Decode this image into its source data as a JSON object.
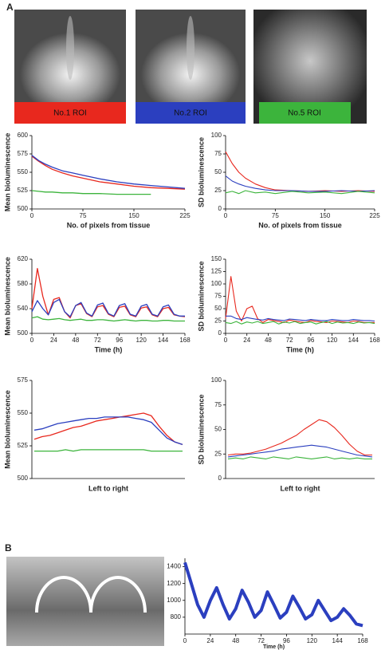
{
  "figure": {
    "panel_a_label": "A",
    "roi_labels": [
      "No.1 ROI",
      "No.2 ROI",
      "No.5 ROI"
    ],
    "panel_b_label": "B"
  },
  "chart_data": [
    {
      "type": "line",
      "xlabel": "No. of pixels from tissue",
      "ylabel": "Mean bioluminescence",
      "x": [
        0,
        10,
        20,
        30,
        45,
        60,
        75,
        100,
        125,
        150,
        175,
        200,
        225
      ],
      "xlim": [
        0,
        225
      ],
      "xticks": [
        0,
        75,
        150,
        225
      ],
      "ylim": [
        500,
        600
      ],
      "yticks": [
        500,
        525,
        550,
        575,
        600
      ],
      "series": [
        {
          "color": "#e8281e",
          "values": [
            572,
            565,
            559,
            554,
            549,
            545,
            542,
            537,
            534,
            531,
            529,
            528,
            527
          ]
        },
        {
          "color": "#2b3fbf",
          "values": [
            573,
            566,
            561,
            557,
            552,
            549,
            546,
            541,
            537,
            534,
            532,
            530,
            528
          ]
        },
        {
          "color": "#3cb43c",
          "values": [
            525,
            524,
            523,
            523,
            522,
            522,
            521,
            521,
            520,
            520,
            520,
            null,
            null
          ]
        }
      ]
    },
    {
      "type": "line",
      "xlabel": "No. of pixels from tissue",
      "ylabel": "SD bioluminescence",
      "x": [
        0,
        10,
        20,
        30,
        45,
        60,
        75,
        100,
        125,
        150,
        175,
        200,
        225
      ],
      "xlim": [
        0,
        225
      ],
      "xticks": [
        0,
        75,
        150,
        225
      ],
      "ylim": [
        0,
        100
      ],
      "yticks": [
        0,
        25,
        50,
        75,
        100
      ],
      "series": [
        {
          "color": "#e8281e",
          "values": [
            78,
            62,
            50,
            42,
            34,
            29,
            26,
            25,
            24,
            25,
            24,
            25,
            24
          ]
        },
        {
          "color": "#2b3fbf",
          "values": [
            45,
            38,
            34,
            31,
            28,
            26,
            25,
            25,
            24,
            24,
            25,
            24,
            25
          ]
        },
        {
          "color": "#3cb43c",
          "values": [
            22,
            24,
            21,
            25,
            22,
            23,
            21,
            24,
            22,
            23,
            21,
            24,
            22
          ]
        }
      ]
    },
    {
      "type": "line",
      "xlabel": "Time (h)",
      "ylabel": "Mean bioluminescence",
      "x": [
        0,
        6,
        12,
        18,
        24,
        30,
        36,
        42,
        48,
        54,
        60,
        66,
        72,
        78,
        84,
        90,
        96,
        102,
        108,
        114,
        120,
        126,
        132,
        138,
        144,
        150,
        156,
        162,
        168
      ],
      "xlim": [
        0,
        168
      ],
      "xticks": [
        0,
        24,
        48,
        72,
        96,
        120,
        144,
        168
      ],
      "ylim": [
        500,
        620
      ],
      "yticks": [
        500,
        540,
        580,
        620
      ],
      "series": [
        {
          "color": "#e8281e",
          "values": [
            540,
            605,
            560,
            530,
            555,
            558,
            535,
            525,
            545,
            548,
            532,
            527,
            543,
            545,
            531,
            527,
            542,
            544,
            530,
            527,
            541,
            543,
            530,
            527,
            540,
            542,
            530,
            528,
            527
          ]
        },
        {
          "color": "#2b3fbf",
          "values": [
            535,
            553,
            540,
            530,
            550,
            555,
            535,
            527,
            545,
            550,
            533,
            528,
            546,
            549,
            532,
            528,
            545,
            548,
            531,
            528,
            544,
            547,
            531,
            528,
            543,
            546,
            531,
            528,
            528
          ]
        },
        {
          "color": "#3cb43c",
          "values": [
            525,
            527,
            523,
            522,
            523,
            524,
            522,
            521,
            522,
            523,
            521,
            521,
            522,
            522,
            521,
            520,
            521,
            522,
            521,
            520,
            521,
            521,
            520,
            520,
            521,
            521,
            520,
            520,
            520
          ]
        }
      ]
    },
    {
      "type": "line",
      "xlabel": "Time (h)",
      "ylabel": "SD bioluminescence",
      "x": [
        0,
        6,
        12,
        18,
        24,
        30,
        36,
        42,
        48,
        54,
        60,
        66,
        72,
        78,
        84,
        90,
        96,
        102,
        108,
        114,
        120,
        126,
        132,
        138,
        144,
        150,
        156,
        162,
        168
      ],
      "xlim": [
        0,
        168
      ],
      "xticks": [
        0,
        24,
        48,
        72,
        96,
        120,
        144,
        168
      ],
      "ylim": [
        0,
        150
      ],
      "yticks": [
        0,
        25,
        50,
        75,
        100,
        125,
        150
      ],
      "series": [
        {
          "color": "#e8281e",
          "values": [
            30,
            115,
            45,
            25,
            50,
            55,
            30,
            22,
            28,
            26,
            24,
            22,
            27,
            25,
            23,
            22,
            26,
            24,
            23,
            22,
            25,
            24,
            23,
            22,
            25,
            24,
            22,
            22,
            22
          ]
        },
        {
          "color": "#2b3fbf",
          "values": [
            35,
            35,
            30,
            28,
            32,
            30,
            28,
            27,
            30,
            28,
            27,
            26,
            29,
            28,
            27,
            26,
            28,
            27,
            26,
            26,
            28,
            27,
            26,
            26,
            28,
            27,
            26,
            26,
            25
          ]
        },
        {
          "color": "#3cb43c",
          "values": [
            22,
            20,
            24,
            19,
            23,
            21,
            24,
            20,
            22,
            24,
            19,
            23,
            21,
            24,
            20,
            22,
            23,
            19,
            22,
            24,
            20,
            23,
            21,
            22,
            20,
            23,
            21,
            22,
            20
          ]
        }
      ]
    },
    {
      "type": "line",
      "xlabel": "Left to right",
      "ylabel": "Mean bioluminescence",
      "ylim": [
        500,
        575
      ],
      "yticks": [
        500,
        525,
        550,
        575
      ],
      "series": [
        {
          "color": "#e8281e",
          "values": [
            530,
            532,
            533,
            535,
            537,
            539,
            540,
            542,
            544,
            545,
            546,
            547,
            548,
            549,
            550,
            548,
            540,
            533,
            528,
            526
          ]
        },
        {
          "color": "#2b3fbf",
          "values": [
            537,
            538,
            540,
            542,
            543,
            544,
            545,
            546,
            546,
            547,
            547,
            547,
            547,
            546,
            545,
            543,
            537,
            531,
            528,
            526
          ]
        },
        {
          "color": "#3cb43c",
          "values": [
            521,
            521,
            521,
            521,
            522,
            521,
            522,
            522,
            522,
            522,
            522,
            522,
            522,
            522,
            522,
            521,
            521,
            521,
            521,
            521
          ]
        }
      ]
    },
    {
      "type": "line",
      "xlabel": "Left to right",
      "ylabel": "SD bioluminescence",
      "ylim": [
        0,
        100
      ],
      "yticks": [
        0,
        25,
        50,
        75,
        100
      ],
      "series": [
        {
          "color": "#e8281e",
          "values": [
            24,
            25,
            25,
            26,
            28,
            30,
            33,
            36,
            40,
            44,
            50,
            55,
            60,
            58,
            52,
            44,
            35,
            28,
            24,
            24
          ]
        },
        {
          "color": "#2b3fbf",
          "values": [
            22,
            23,
            24,
            25,
            26,
            27,
            28,
            30,
            31,
            32,
            33,
            34,
            33,
            32,
            30,
            28,
            26,
            24,
            23,
            22
          ]
        },
        {
          "color": "#3cb43c",
          "values": [
            20,
            21,
            20,
            22,
            21,
            20,
            22,
            21,
            20,
            22,
            21,
            20,
            21,
            22,
            20,
            21,
            20,
            21,
            20,
            20
          ]
        }
      ]
    },
    {
      "type": "line",
      "xlabel": "Time (h)",
      "x": [
        0,
        6,
        12,
        18,
        24,
        30,
        36,
        42,
        48,
        54,
        60,
        66,
        72,
        78,
        84,
        90,
        96,
        102,
        108,
        114,
        120,
        126,
        132,
        138,
        144,
        150,
        156,
        162,
        168
      ],
      "xlim": [
        0,
        168
      ],
      "xticks": [
        0,
        24,
        48,
        72,
        96,
        120,
        144,
        168
      ],
      "ylim": [
        600,
        1500
      ],
      "yticks": [
        800,
        1000,
        1200,
        1400
      ],
      "series": [
        {
          "color": "#2b3fbf",
          "values": [
            1450,
            1200,
            950,
            800,
            1000,
            1150,
            950,
            780,
            900,
            1120,
            980,
            800,
            880,
            1100,
            950,
            790,
            860,
            1050,
            920,
            780,
            830,
            1000,
            880,
            760,
            800,
            900,
            820,
            720,
            700
          ]
        }
      ]
    }
  ]
}
